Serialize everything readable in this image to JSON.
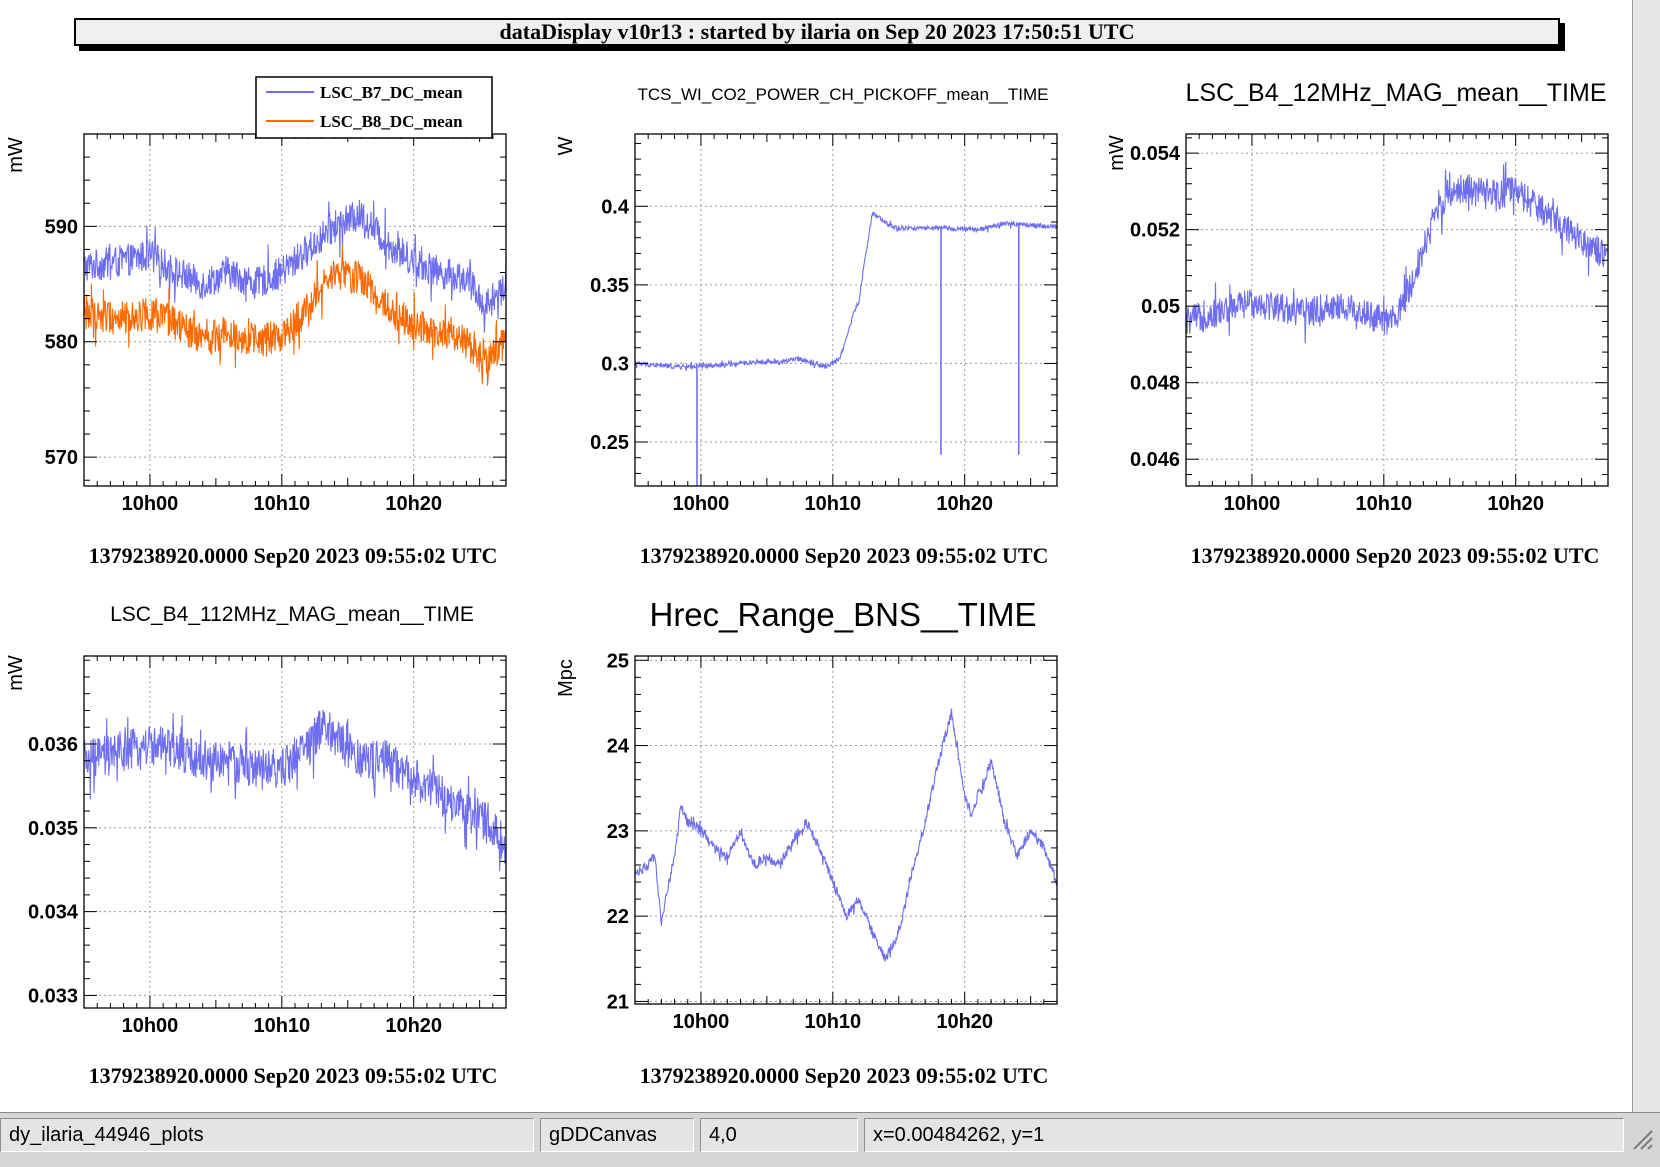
{
  "banner": {
    "title": "dataDisplay v10r13 : started by ilaria on Sep 20 2023 17:50:51 UTC"
  },
  "status": {
    "fields": [
      "dy_ilaria_44946_plots",
      "gDDCanvas",
      "4,0",
      "x=0.00484262, y=1"
    ]
  },
  "colors": {
    "series_blue": "#6e6ef0",
    "series_orange": "#ff6a00",
    "grid": "#9a9a9a"
  },
  "chart_data": [
    {
      "type": "line",
      "title": "",
      "ylabel": "mW",
      "ylim": [
        567.5,
        598
      ],
      "yticks": [
        570,
        580,
        590
      ],
      "xticks": [
        "10h00",
        "10h10",
        "10h20"
      ],
      "xlim_min": [
        -5,
        27
      ],
      "footer": "1379238920.0000 Sep20 2023 09:55:02 UTC",
      "legend": {
        "position": "top",
        "entries": [
          "LSC_B7_DC_mean",
          "LSC_B8_DC_mean"
        ]
      },
      "series": [
        {
          "name": "LSC_B7_DC_mean",
          "color": "#6e6ef0",
          "noise": 1.4,
          "x": [
            -5,
            -2,
            0,
            2,
            4,
            6,
            8,
            10,
            12,
            14,
            16,
            18,
            20,
            22,
            24,
            25.5,
            27
          ],
          "y": [
            586.5,
            587,
            587.5,
            586,
            585,
            586,
            585,
            586,
            588,
            590,
            591,
            588.5,
            587,
            586,
            585.5,
            583,
            585
          ]
        },
        {
          "name": "LSC_B8_DC_mean",
          "color": "#ff6a00",
          "noise": 1.5,
          "x": [
            -5,
            -2,
            0,
            2,
            4,
            6,
            8,
            10,
            12,
            14,
            16,
            18,
            20,
            22,
            24,
            25.5,
            27
          ],
          "y": [
            582.5,
            582,
            582.5,
            581.5,
            580,
            581,
            580,
            580.5,
            583,
            586,
            585.5,
            583,
            581.5,
            580.5,
            580,
            578,
            580
          ]
        }
      ]
    },
    {
      "type": "line",
      "title": "TCS_WI_CO2_POWER_CH_PICKOFF_mean__TIME",
      "ylabel": "W",
      "ylim": [
        0.222,
        0.446
      ],
      "yticks": [
        0.25,
        0.3,
        0.35,
        0.4
      ],
      "xticks": [
        "10h00",
        "10h10",
        "10h20"
      ],
      "xlim_min": [
        -5,
        27
      ],
      "footer": "1379238920.0000 Sep20 2023 09:55:02 UTC",
      "series": [
        {
          "name": "TCS_WI_CO2_POWER_CH_PICKOFF_mean",
          "color": "#6e6ef0",
          "noise": 0.0015,
          "x": [
            -5,
            -2,
            0,
            2,
            4,
            6,
            7.5,
            9.5,
            10.5,
            11,
            11.5,
            12,
            12.5,
            13,
            13.5,
            14,
            15,
            17,
            19,
            21,
            23,
            25,
            27
          ],
          "y": [
            0.3,
            0.298,
            0.298,
            0.299,
            0.301,
            0.301,
            0.303,
            0.298,
            0.303,
            0.315,
            0.33,
            0.34,
            0.37,
            0.395,
            0.393,
            0.389,
            0.386,
            0.386,
            0.386,
            0.385,
            0.389,
            0.388,
            0.387
          ],
          "spikes": [
            {
              "x": -0.3,
              "y": 0.222
            },
            {
              "x": 18.2,
              "y": 0.242
            },
            {
              "x": 24.1,
              "y": 0.242
            }
          ]
        }
      ]
    },
    {
      "type": "line",
      "title": "LSC_B4_12MHz_MAG_mean__TIME",
      "ylabel": "mW",
      "ylim": [
        0.0453,
        0.0545
      ],
      "yticks": [
        0.046,
        0.048,
        0.05,
        0.052,
        0.054
      ],
      "xticks": [
        "10h00",
        "10h10",
        "10h20"
      ],
      "xlim_min": [
        -5,
        27
      ],
      "footer": "1379238920.0000 Sep20 2023 09:55:02 UTC",
      "series": [
        {
          "name": "LSC_B4_12MHz_MAG_mean",
          "color": "#6e6ef0",
          "noise": 0.0004,
          "x": [
            -5,
            -2,
            0,
            2,
            4,
            6,
            8,
            10,
            11,
            12,
            13,
            14,
            15,
            16,
            18,
            20,
            22,
            24,
            26,
            27
          ],
          "y": [
            0.0496,
            0.0499,
            0.0501,
            0.05,
            0.0498,
            0.05,
            0.0499,
            0.0496,
            0.0497,
            0.0505,
            0.0515,
            0.0525,
            0.053,
            0.0531,
            0.0529,
            0.053,
            0.0525,
            0.052,
            0.0515,
            0.0512
          ]
        }
      ]
    },
    {
      "type": "line",
      "title": "LSC_B4_112MHz_MAG_mean__TIME",
      "ylabel": "mW",
      "ylim": [
        0.03285,
        0.03705
      ],
      "yticks": [
        0.033,
        0.034,
        0.035,
        0.036
      ],
      "xticks": [
        "10h00",
        "10h10",
        "10h20"
      ],
      "xlim_min": [
        -5,
        27
      ],
      "footer": "1379238920.0000 Sep20 2023 09:55:02 UTC",
      "series": [
        {
          "name": "LSC_B4_112MHz_MAG_mean",
          "color": "#6e6ef0",
          "noise": 0.00025,
          "x": [
            -5,
            -2,
            0,
            2,
            4,
            6,
            8,
            10,
            12,
            13,
            14,
            16,
            18,
            20,
            22,
            24,
            26,
            27
          ],
          "y": [
            0.0358,
            0.0359,
            0.036,
            0.0359,
            0.0358,
            0.0358,
            0.0357,
            0.0357,
            0.036,
            0.0362,
            0.0361,
            0.0358,
            0.0358,
            0.0356,
            0.0354,
            0.0352,
            0.035,
            0.0348
          ]
        }
      ]
    },
    {
      "type": "line",
      "title": "Hrec_Range_BNS__TIME",
      "ylabel": "Mpc",
      "ylim": [
        20.97,
        25.05
      ],
      "yticks": [
        21,
        22,
        23,
        24,
        25
      ],
      "xticks": [
        "10h00",
        "10h10",
        "10h20"
      ],
      "xlim_min": [
        -5,
        27
      ],
      "footer": "1379238920.0000 Sep20 2023 09:55:02 UTC",
      "series": [
        {
          "name": "Hrec_Range_BNS",
          "color": "#6e6ef0",
          "noise": 0.06,
          "x": [
            -5,
            -4,
            -3.5,
            -3,
            -2.7,
            -2,
            -1.5,
            -1,
            0,
            1,
            2,
            3,
            4,
            5,
            6,
            7,
            8,
            9,
            10,
            11,
            12,
            13,
            14,
            15,
            16,
            17,
            18,
            19,
            20,
            20.5,
            21,
            22,
            22.5,
            23,
            24,
            25,
            26,
            27
          ],
          "y": [
            22.5,
            22.6,
            22.7,
            21.9,
            22.2,
            22.7,
            23.3,
            23.1,
            23.0,
            22.8,
            22.7,
            23.0,
            22.6,
            22.7,
            22.6,
            22.9,
            23.1,
            22.8,
            22.4,
            22.0,
            22.2,
            21.8,
            21.5,
            21.8,
            22.5,
            23.1,
            23.8,
            24.4,
            23.4,
            23.2,
            23.4,
            23.8,
            23.5,
            23.1,
            22.7,
            23.0,
            22.8,
            22.4
          ]
        }
      ]
    }
  ]
}
